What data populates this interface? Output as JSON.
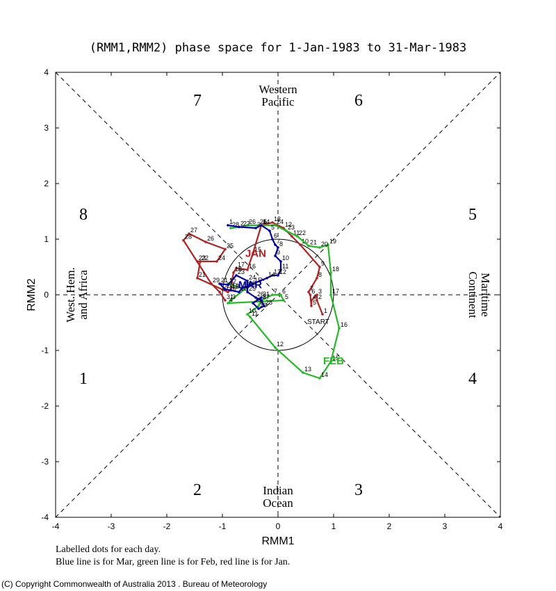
{
  "title": "(RMM1,RMM2) phase space for  1-Jan-1983 to 31-Mar-1983",
  "notes": {
    "line1": "Labelled dots for each day.",
    "line2": "Blue line is for Mar, green line is for Feb, red line is for Jan."
  },
  "copyright": "(C) Copyright Commonwealth of Australia 2013 . Bureau of Meteorology",
  "regions": {
    "top": [
      "Western",
      "Pacific"
    ],
    "bottom": [
      "Indian",
      "Ocean"
    ],
    "left": [
      "West. Hem.",
      "and Africa"
    ],
    "right": [
      "Maritime",
      "Continent"
    ]
  },
  "phases": [
    "1",
    "2",
    "3",
    "4",
    "5",
    "6",
    "7",
    "8"
  ],
  "start_label": "START",
  "colors": {
    "jan": "#b22222",
    "feb": "#22bb22",
    "mar": "#0000aa"
  },
  "chart_data": {
    "type": "line",
    "title": "(RMM1,RMM2) phase space for  1-Jan-1983 to 31-Mar-1983",
    "xlabel": "RMM1",
    "ylabel": "RMM2",
    "xlim": [
      -4,
      4
    ],
    "ylim": [
      -4,
      4
    ],
    "xticks": [
      "-4",
      "-3",
      "-2",
      "-1",
      "0",
      "1",
      "2",
      "3",
      "4"
    ],
    "yticks": [
      "-4",
      "-3",
      "-2",
      "-1",
      "0",
      "1",
      "2",
      "3",
      "4"
    ],
    "unit_circle_radius": 1,
    "series": [
      {
        "name": "JAN",
        "color": "#b22222",
        "label_at": [
          -0.4,
          0.68
        ],
        "points": [
          [
            0.8,
            -0.35
          ],
          [
            0.7,
            -0.1
          ],
          [
            0.7,
            0.0
          ],
          [
            0.6,
            -0.1
          ],
          [
            0.6,
            -0.2
          ],
          [
            0.58,
            0.0
          ],
          [
            0.55,
            0.05
          ],
          [
            0.7,
            0.3
          ],
          [
            0.75,
            0.5
          ],
          [
            0.4,
            0.9
          ],
          [
            0.25,
            1.05
          ],
          [
            0.1,
            1.2
          ],
          [
            -0.1,
            1.3
          ],
          [
            -0.3,
            1.25
          ],
          [
            -0.45,
            0.75
          ],
          [
            -0.55,
            0.45
          ],
          [
            -0.75,
            0.48
          ],
          [
            -0.8,
            0.4
          ],
          [
            -0.85,
            0.1
          ],
          [
            -0.9,
            0.05
          ],
          [
            -1.45,
            0.3
          ],
          [
            -1.4,
            0.6
          ],
          [
            -1.45,
            0.6
          ],
          [
            -1.1,
            0.6
          ],
          [
            -0.95,
            0.82
          ],
          [
            -1.3,
            0.95
          ],
          [
            -1.6,
            1.1
          ],
          [
            -1.7,
            0.98
          ],
          [
            -1.2,
            0.2
          ],
          [
            -1.05,
            0.05
          ],
          [
            -0.95,
            -0.1
          ]
        ]
      },
      {
        "name": "FEB",
        "color": "#22bb22",
        "label_at": [
          1.0,
          -1.25
        ],
        "points": [
          [
            -0.9,
            0.2
          ],
          [
            -0.6,
            0.1
          ],
          [
            -0.85,
            -0.1
          ],
          [
            -0.9,
            -0.15
          ],
          [
            0.1,
            -0.1
          ],
          [
            0.05,
            0.0
          ],
          [
            -0.1,
            0.0
          ],
          [
            -0.3,
            -0.1
          ],
          [
            -0.35,
            -0.2
          ],
          [
            -0.55,
            -0.35
          ],
          [
            -0.5,
            -0.4
          ],
          [
            -0.05,
            -0.95
          ],
          [
            0.45,
            -1.4
          ],
          [
            0.75,
            -1.5
          ],
          [
            0.95,
            -1.2
          ],
          [
            1.1,
            -0.6
          ],
          [
            0.95,
            0.0
          ],
          [
            0.95,
            0.4
          ],
          [
            0.9,
            0.9
          ],
          [
            0.75,
            0.85
          ],
          [
            0.55,
            0.88
          ],
          [
            0.35,
            1.05
          ],
          [
            0.15,
            1.15
          ],
          [
            -0.05,
            1.25
          ],
          [
            -0.35,
            1.25
          ],
          [
            -0.55,
            1.25
          ],
          [
            -0.65,
            1.22
          ],
          [
            -0.85,
            1.2
          ]
        ]
      },
      {
        "name": "MAR",
        "color": "#0000aa",
        "label_at": [
          -0.5,
          0.12
        ],
        "points": [
          [
            -0.9,
            1.25
          ],
          [
            -0.7,
            1.22
          ],
          [
            -0.4,
            1.2
          ],
          [
            -0.3,
            1.25
          ],
          [
            -0.15,
            1.15
          ],
          [
            -0.1,
            1.0
          ],
          [
            -0.05,
            0.9
          ],
          [
            0.0,
            0.85
          ],
          [
            -0.05,
            0.7
          ],
          [
            0.05,
            0.6
          ],
          [
            0.05,
            0.45
          ],
          [
            0.0,
            0.35
          ],
          [
            -0.1,
            0.35
          ],
          [
            -0.2,
            0.3
          ],
          [
            -0.45,
            0.2
          ],
          [
            -0.55,
            0.15
          ],
          [
            -0.65,
            0.12
          ],
          [
            -0.7,
            0.05
          ],
          [
            -0.85,
            0.08
          ],
          [
            -0.95,
            0.1
          ],
          [
            -1.05,
            0.2
          ],
          [
            -0.9,
            0.18
          ],
          [
            -0.75,
            0.35
          ],
          [
            -0.55,
            0.25
          ],
          [
            -0.55,
            0.05
          ],
          [
            -0.4,
            -0.05
          ],
          [
            -0.3,
            -0.1
          ],
          [
            -0.25,
            -0.2
          ],
          [
            -0.35,
            -0.25
          ],
          [
            -0.45,
            -0.15
          ],
          [
            -0.3,
            -0.05
          ]
        ]
      }
    ]
  }
}
